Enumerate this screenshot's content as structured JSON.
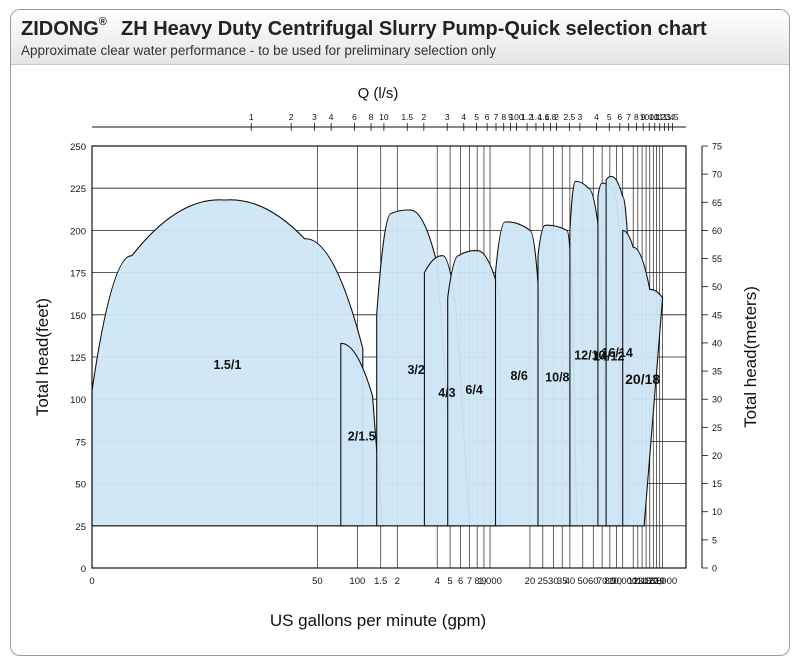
{
  "brand": "ZIDONG",
  "brand_mark": "®",
  "title": "ZH Heavy Duty Centrifugal Slurry Pump-Quick selection chart",
  "subtitle": "Approximate clear water performance - to be used for preliminary selection only",
  "colors": {
    "region_fill": "#cfe6f6",
    "region_stroke": "#111111",
    "grid": "#222222",
    "header_bg": "#e8e8e8"
  },
  "chart_data": {
    "type": "area",
    "top_axis_label": "Q (l/s)",
    "xlabel": "US gallons per minute (gpm)",
    "ylabel": "Total head(feet)",
    "ylabel_right": "Total head(meters)",
    "ylim": [
      0,
      250
    ],
    "ylim_right": [
      0,
      75
    ],
    "y_ticks": [
      "0",
      "25",
      "50",
      "75",
      "100",
      "125",
      "150",
      "175",
      "200",
      "225",
      "250"
    ],
    "y_ticks_right": [
      "0",
      "5",
      "10",
      "15",
      "20",
      "25",
      "30",
      "35",
      "40",
      "45",
      "50",
      "55",
      "60",
      "65",
      "70",
      "75"
    ],
    "x_ticks_bottom": [
      {
        "label": "0",
        "gpm": 1
      },
      {
        "label": "50",
        "gpm": 50
      },
      {
        "label": "100",
        "gpm": 100
      },
      {
        "label": "1.5",
        "gpm": 150
      },
      {
        "label": "2",
        "gpm": 200
      },
      {
        "label": "4",
        "gpm": 400
      },
      {
        "label": "5",
        "gpm": 500
      },
      {
        "label": "6",
        "gpm": 600
      },
      {
        "label": "7",
        "gpm": 700
      },
      {
        "label": "8",
        "gpm": 800
      },
      {
        "label": "9",
        "gpm": 900
      },
      {
        "label": "1,000",
        "gpm": 1000
      },
      {
        "label": "20",
        "gpm": 2000
      },
      {
        "label": "25",
        "gpm": 2500
      },
      {
        "label": "30",
        "gpm": 3000
      },
      {
        "label": "35",
        "gpm": 3500
      },
      {
        "label": "40",
        "gpm": 4000
      },
      {
        "label": "50",
        "gpm": 5000
      },
      {
        "label": "60",
        "gpm": 6000
      },
      {
        "label": "70",
        "gpm": 7000
      },
      {
        "label": "80",
        "gpm": 8000
      },
      {
        "label": "90",
        "gpm": 9000
      },
      {
        "label": "10,000",
        "gpm": 10000
      },
      {
        "label": "12",
        "gpm": 12000
      },
      {
        "label": "13",
        "gpm": 13000
      },
      {
        "label": "14",
        "gpm": 14000
      },
      {
        "label": "15",
        "gpm": 15000
      },
      {
        "label": "16",
        "gpm": 16000
      },
      {
        "label": "17",
        "gpm": 17000
      },
      {
        "label": "18",
        "gpm": 18000
      },
      {
        "label": "19",
        "gpm": 19000
      },
      {
        "label": "20,000",
        "gpm": 20000
      }
    ],
    "x_ticks_top": [
      {
        "label": "1",
        "ls": 1
      },
      {
        "label": "2",
        "ls": 2
      },
      {
        "label": "3",
        "ls": 3
      },
      {
        "label": "4",
        "ls": 4
      },
      {
        "label": "6",
        "ls": 6
      },
      {
        "label": "8",
        "ls": 8
      },
      {
        "label": "10",
        "ls": 10
      },
      {
        "label": "1.5",
        "ls": 15
      },
      {
        "label": "2",
        "ls": 20
      },
      {
        "label": "3",
        "ls": 30
      },
      {
        "label": "4",
        "ls": 40
      },
      {
        "label": "5",
        "ls": 50
      },
      {
        "label": "6",
        "ls": 60
      },
      {
        "label": "7",
        "ls": 70
      },
      {
        "label": "8",
        "ls": 80
      },
      {
        "label": "9",
        "ls": 90
      },
      {
        "label": "100",
        "ls": 100
      },
      {
        "label": "1.2",
        "ls": 120
      },
      {
        "label": "1.4",
        "ls": 140
      },
      {
        "label": "1.6",
        "ls": 160
      },
      {
        "label": "1.8",
        "ls": 180
      },
      {
        "label": "2",
        "ls": 200
      },
      {
        "label": "2.5",
        "ls": 250
      },
      {
        "label": "3",
        "ls": 300
      },
      {
        "label": "4",
        "ls": 400
      },
      {
        "label": "5",
        "ls": 500
      },
      {
        "label": "6",
        "ls": 600
      },
      {
        "label": "7",
        "ls": 700
      },
      {
        "label": "8",
        "ls": 800
      },
      {
        "label": "9",
        "ls": 900
      },
      {
        "label": "1000",
        "ls": 1000
      },
      {
        "label": "1.1",
        "ls": 1100
      },
      {
        "label": "1.2",
        "ls": 1200
      },
      {
        "label": "1.3",
        "ls": 1300
      },
      {
        "label": "1.4",
        "ls": 1400
      },
      {
        "label": "1.5",
        "ls": 1500
      }
    ],
    "series": [
      {
        "name": "1.5/1",
        "points": [
          [
            1,
            25
          ],
          [
            1,
            105
          ],
          [
            2,
            185
          ],
          [
            10,
            218
          ],
          [
            40,
            195
          ],
          [
            110,
            130
          ],
          [
            110,
            25
          ]
        ]
      },
      {
        "name": "2/1.5",
        "points": [
          [
            75,
            25
          ],
          [
            75,
            133
          ],
          [
            130,
            102
          ],
          [
            155,
            25
          ]
        ]
      },
      {
        "name": "3/2",
        "points": [
          [
            140,
            25
          ],
          [
            140,
            150
          ],
          [
            180,
            210
          ],
          [
            250,
            212
          ],
          [
            400,
            180
          ],
          [
            550,
            25
          ]
        ]
      },
      {
        "name": "4/3",
        "points": [
          [
            320,
            25
          ],
          [
            320,
            175
          ],
          [
            440,
            185
          ],
          [
            560,
            150
          ],
          [
            700,
            25
          ]
        ]
      },
      {
        "name": "6/4",
        "points": [
          [
            480,
            25
          ],
          [
            480,
            160
          ],
          [
            580,
            185
          ],
          [
            800,
            188
          ],
          [
            1200,
            160
          ],
          [
            1200,
            25
          ]
        ]
      },
      {
        "name": "8/6",
        "points": [
          [
            1100,
            25
          ],
          [
            1100,
            175
          ],
          [
            1300,
            205
          ],
          [
            2000,
            200
          ],
          [
            2500,
            120
          ],
          [
            2500,
            25
          ]
        ]
      },
      {
        "name": "10/8",
        "points": [
          [
            2300,
            25
          ],
          [
            2300,
            185
          ],
          [
            2600,
            203
          ],
          [
            3800,
            200
          ],
          [
            4200,
            160
          ],
          [
            4500,
            25
          ]
        ]
      },
      {
        "name": "12/10",
        "points": [
          [
            4000,
            25
          ],
          [
            4000,
            200
          ],
          [
            4400,
            229
          ],
          [
            5500,
            225
          ],
          [
            6600,
            200
          ],
          [
            8000,
            25
          ]
        ]
      },
      {
        "name": "14/12",
        "points": [
          [
            6500,
            25
          ],
          [
            6500,
            220
          ],
          [
            7000,
            228
          ],
          [
            8200,
            225
          ],
          [
            9500,
            200
          ],
          [
            9500,
            25
          ]
        ]
      },
      {
        "name": "16/14",
        "points": [
          [
            7500,
            25
          ],
          [
            7500,
            230
          ],
          [
            8200,
            232
          ],
          [
            10000,
            220
          ],
          [
            11000,
            190
          ],
          [
            11000,
            25
          ]
        ]
      },
      {
        "name": "20/18",
        "points": [
          [
            10000,
            25
          ],
          [
            10000,
            200
          ],
          [
            12000,
            190
          ],
          [
            16000,
            165
          ],
          [
            20000,
            160
          ],
          [
            14500,
            25
          ]
        ]
      }
    ]
  }
}
